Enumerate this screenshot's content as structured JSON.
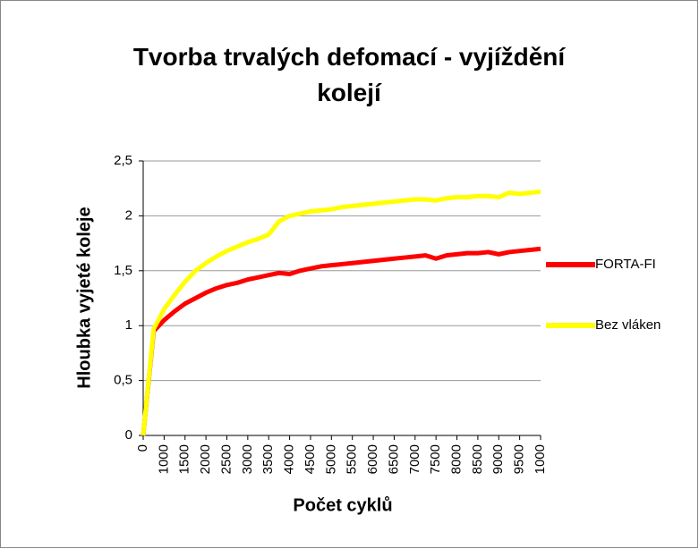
{
  "chart_data": {
    "type": "line",
    "title": "Tvorba trvalých defomací - vyjíždění kolejí",
    "x_label": "Počet cyklů",
    "y_label": "Hloubka vyjeté koleje",
    "categories": [
      "0",
      null,
      "1000",
      null,
      "1500",
      null,
      "2000",
      null,
      "2500",
      null,
      "3000",
      null,
      "3500",
      null,
      "4000",
      null,
      "4500",
      null,
      "5000",
      null,
      "5500",
      null,
      "6000",
      null,
      "6500",
      null,
      "7000",
      null,
      "7500",
      null,
      "8000",
      null,
      "8500",
      null,
      "9000",
      null,
      "9500",
      null,
      "1000"
    ],
    "series": [
      {
        "name": "FORTA-FI",
        "color": "#ff0000",
        "values": [
          0,
          0.95,
          1.05,
          1.13,
          1.2,
          1.25,
          1.3,
          1.34,
          1.37,
          1.39,
          1.42,
          1.44,
          1.46,
          1.48,
          1.47,
          1.5,
          1.52,
          1.54,
          1.55,
          1.56,
          1.57,
          1.58,
          1.59,
          1.6,
          1.61,
          1.62,
          1.63,
          1.64,
          1.61,
          1.64,
          1.65,
          1.66,
          1.66,
          1.67,
          1.65,
          1.67,
          1.68,
          1.69,
          1.7
        ]
      },
      {
        "name": "Bez vláken",
        "color": "#ffff00",
        "values": [
          0,
          0.97,
          1.15,
          1.28,
          1.4,
          1.5,
          1.57,
          1.63,
          1.68,
          1.72,
          1.76,
          1.79,
          1.83,
          1.95,
          2.0,
          2.02,
          2.04,
          2.05,
          2.06,
          2.08,
          2.09,
          2.1,
          2.11,
          2.12,
          2.13,
          2.14,
          2.15,
          2.15,
          2.14,
          2.16,
          2.17,
          2.17,
          2.18,
          2.18,
          2.17,
          2.21,
          2.2,
          2.21,
          2.22
        ]
      }
    ],
    "ylim": [
      0,
      2.5
    ],
    "yticks": [
      0,
      {
        "value": 0.5,
        "label": "0,5"
      },
      1,
      {
        "value": 1.5,
        "label": "1,5"
      },
      2,
      {
        "value": 2.5,
        "label": "2,5"
      }
    ],
    "grid": true,
    "legend": "right"
  }
}
